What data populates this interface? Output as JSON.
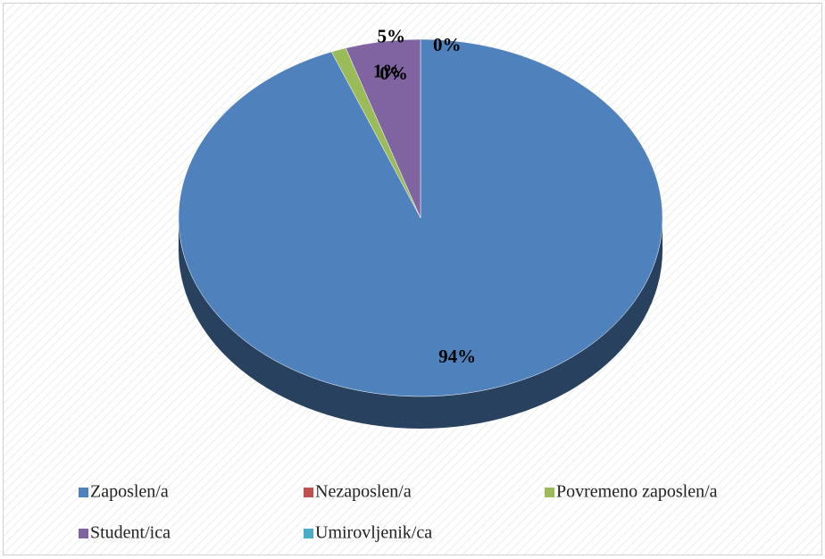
{
  "chart_data": {
    "type": "pie",
    "categories": [
      "Zaposlen/a",
      "Nezaposlen/a",
      "Povremeno zaposlen/a",
      "Student/ica",
      "Umirovljenik/ca"
    ],
    "values": [
      94,
      0,
      1,
      5,
      0
    ],
    "value_labels": [
      "94%",
      "0%",
      "1%",
      "5%",
      "0%"
    ],
    "colors": [
      "#4f81bd",
      "#c0504d",
      "#9bbb59",
      "#8064a2",
      "#4bacc6"
    ],
    "legend": "bottom"
  }
}
